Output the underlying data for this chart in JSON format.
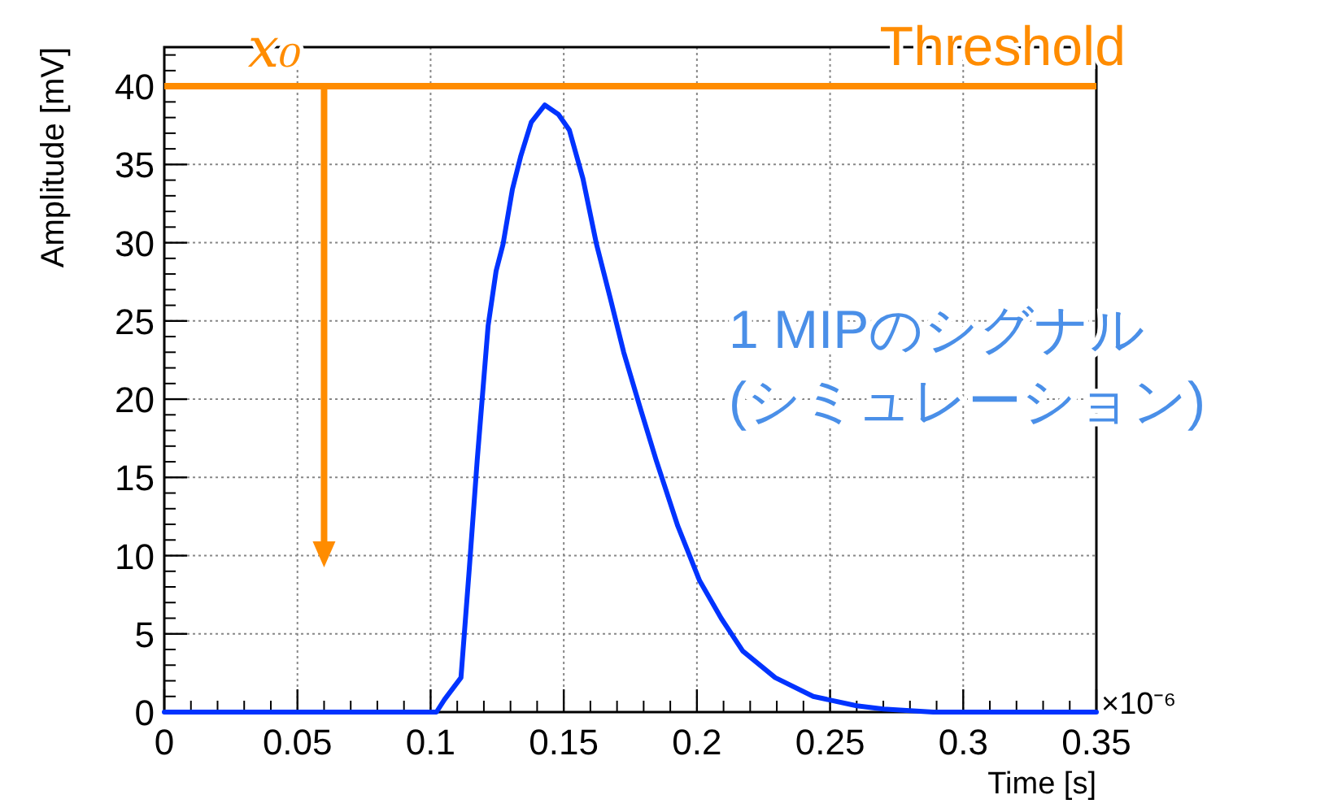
{
  "chart_data": {
    "type": "line",
    "xlabel": "Time [s]",
    "ylabel": "Amplitude [mV]",
    "x": [
      0,
      0.1022,
      0.1052,
      0.1114,
      0.1145,
      0.1175,
      0.1216,
      0.1246,
      0.1272,
      0.1307,
      0.1338,
      0.1378,
      0.1429,
      0.148,
      0.1521,
      0.1572,
      0.1623,
      0.1674,
      0.1725,
      0.1786,
      0.1847,
      0.1928,
      0.201,
      0.2091,
      0.2172,
      0.2294,
      0.2437,
      0.26,
      0.27,
      0.2887,
      0.35
    ],
    "series": [
      {
        "color": "#0033ff",
        "values": [
          0,
          0,
          0.8,
          2.2,
          9.1,
          16.1,
          24.7,
          28.2,
          29.9,
          33.4,
          35.5,
          37.7,
          38.8,
          38.2,
          37.2,
          34.1,
          29.9,
          26.5,
          23.0,
          19.5,
          16.1,
          11.9,
          8.4,
          6.0,
          3.9,
          2.2,
          1.0,
          0.4,
          0.2,
          0,
          0
        ]
      }
    ],
    "xlim": [
      0,
      0.35
    ],
    "xticks": [
      0,
      0.05,
      0.1,
      0.15,
      0.2,
      0.25,
      0.3,
      0.35
    ],
    "ylim": [
      0,
      42.5
    ],
    "yticks": [
      0,
      5,
      10,
      15,
      20,
      25,
      30,
      35,
      40
    ],
    "grid": true,
    "marker": "none",
    "line_style": "solid",
    "ref_lines": [
      {
        "axis": "y",
        "value": 40,
        "label": "Threshold",
        "color": "#ff8c00"
      }
    ],
    "annotations": [
      "×10⁻⁶",
      {
        "text": "x₀",
        "x": 0.06,
        "y": 40
      },
      "1 MIPのシグナル\n(シミュレーション)"
    ]
  }
}
